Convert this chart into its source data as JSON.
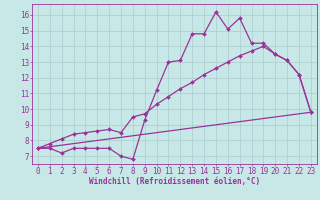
{
  "background_color": "#c8e8e8",
  "grid_color": "#aacccc",
  "line_color": "#993399",
  "marker": "D",
  "markersize": 2.0,
  "linewidth": 0.9,
  "xlabel": "Windchill (Refroidissement éolien,°C)",
  "xlabel_fontsize": 5.5,
  "tick_fontsize": 5.5,
  "xlim": [
    -0.5,
    23.5
  ],
  "ylim": [
    6.5,
    16.7
  ],
  "yticks": [
    7,
    8,
    9,
    10,
    11,
    12,
    13,
    14,
    15,
    16
  ],
  "xticks": [
    0,
    1,
    2,
    3,
    4,
    5,
    6,
    7,
    8,
    9,
    10,
    11,
    12,
    13,
    14,
    15,
    16,
    17,
    18,
    19,
    20,
    21,
    22,
    23
  ],
  "series": [
    {
      "x": [
        0,
        1,
        2,
        3,
        4,
        5,
        6,
        7,
        8,
        9,
        10,
        11,
        12,
        13,
        14,
        15,
        16,
        17,
        18,
        19,
        20,
        21,
        22,
        23
      ],
      "y": [
        7.5,
        7.5,
        7.2,
        7.5,
        7.5,
        7.5,
        7.5,
        7.0,
        6.8,
        9.3,
        11.2,
        13.0,
        13.1,
        14.8,
        14.8,
        16.2,
        15.1,
        15.8,
        14.2,
        14.2,
        13.5,
        13.1,
        12.2,
        9.8
      ],
      "has_marker": true
    },
    {
      "x": [
        0,
        1,
        2,
        3,
        4,
        5,
        6,
        7,
        8,
        9,
        10,
        11,
        12,
        13,
        14,
        15,
        16,
        17,
        18,
        19,
        20,
        21,
        22,
        23
      ],
      "y": [
        7.5,
        7.8,
        8.1,
        8.4,
        8.5,
        8.6,
        8.7,
        8.5,
        9.5,
        9.7,
        10.3,
        10.8,
        11.3,
        11.7,
        12.2,
        12.6,
        13.0,
        13.4,
        13.7,
        14.0,
        13.5,
        13.1,
        12.2,
        9.8
      ],
      "has_marker": true
    },
    {
      "x": [
        0,
        23
      ],
      "y": [
        7.5,
        9.8
      ],
      "has_marker": false
    }
  ]
}
